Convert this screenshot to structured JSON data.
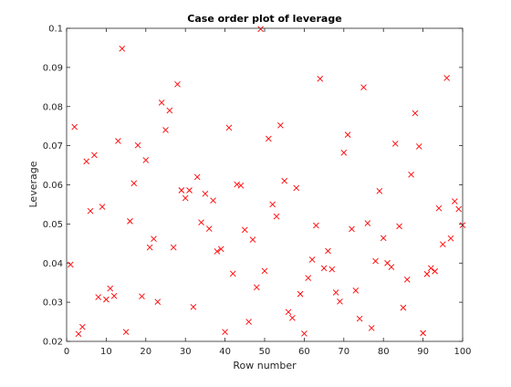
{
  "chart_data": {
    "type": "scatter",
    "title": "Case order plot of leverage",
    "xlabel": "Row number",
    "ylabel": "Leverage",
    "xlim": [
      0,
      100
    ],
    "ylim": [
      0.02,
      0.1
    ],
    "x_ticks": [
      0,
      10,
      20,
      30,
      40,
      50,
      60,
      70,
      80,
      90,
      100
    ],
    "y_ticks": [
      0.02,
      0.03,
      0.04,
      0.05,
      0.06,
      0.07,
      0.08,
      0.09,
      0.1
    ],
    "x_tick_labels": [
      "0",
      "10",
      "20",
      "30",
      "40",
      "50",
      "60",
      "70",
      "80",
      "90",
      "100"
    ],
    "y_tick_labels": [
      "0.02",
      "0.03",
      "0.04",
      "0.05",
      "0.06",
      "0.07",
      "0.08",
      "0.09",
      "0.1"
    ],
    "grid": false,
    "box": true,
    "marker": "x",
    "marker_color": "#ff0000",
    "x": [
      1,
      2,
      3,
      4,
      5,
      6,
      7,
      8,
      9,
      10,
      11,
      12,
      13,
      14,
      15,
      16,
      17,
      18,
      19,
      20,
      21,
      22,
      23,
      24,
      25,
      26,
      27,
      28,
      29,
      30,
      31,
      32,
      33,
      34,
      35,
      36,
      37,
      38,
      39,
      40,
      41,
      42,
      43,
      44,
      45,
      46,
      47,
      48,
      49,
      50,
      51,
      52,
      53,
      54,
      55,
      56,
      57,
      58,
      59,
      60,
      61,
      62,
      63,
      64,
      65,
      66,
      67,
      68,
      69,
      70,
      71,
      72,
      73,
      74,
      75,
      76,
      77,
      78,
      79,
      80,
      81,
      82,
      83,
      84,
      85,
      86,
      87,
      88,
      89,
      90,
      91,
      92,
      93,
      94,
      95,
      96,
      97,
      98,
      99,
      100
    ],
    "y": [
      0.0396,
      0.0748,
      0.0219,
      0.0237,
      0.066,
      0.0533,
      0.0676,
      0.0313,
      0.0544,
      0.0307,
      0.0335,
      0.0316,
      0.0712,
      0.0948,
      0.0224,
      0.0507,
      0.0604,
      0.0701,
      0.0315,
      0.0663,
      0.044,
      0.0462,
      0.0301,
      0.081,
      0.074,
      0.079,
      0.044,
      0.0857,
      0.0586,
      0.0566,
      0.0586,
      0.0288,
      0.062,
      0.0504,
      0.0577,
      0.0488,
      0.056,
      0.043,
      0.0436,
      0.0224,
      0.0746,
      0.0373,
      0.0601,
      0.0598,
      0.0485,
      0.025,
      0.046,
      0.0338,
      0.0998,
      0.038,
      0.0718,
      0.055,
      0.0519,
      0.0752,
      0.061,
      0.0275,
      0.026,
      0.0592,
      0.0321,
      0.022,
      0.0362,
      0.0409,
      0.0496,
      0.0871,
      0.0387,
      0.0431,
      0.0384,
      0.0325,
      0.0302,
      0.0682,
      0.0728,
      0.0487,
      0.033,
      0.0258,
      0.0849,
      0.0502,
      0.0234,
      0.0405,
      0.0584,
      0.0464,
      0.04,
      0.039,
      0.0705,
      0.0494,
      0.0286,
      0.0358,
      0.0626,
      0.0783,
      0.0698,
      0.0221,
      0.0372,
      0.0387,
      0.0379,
      0.054,
      0.0448,
      0.0873,
      0.0463,
      0.0558,
      0.0538,
      0.0497
    ]
  }
}
